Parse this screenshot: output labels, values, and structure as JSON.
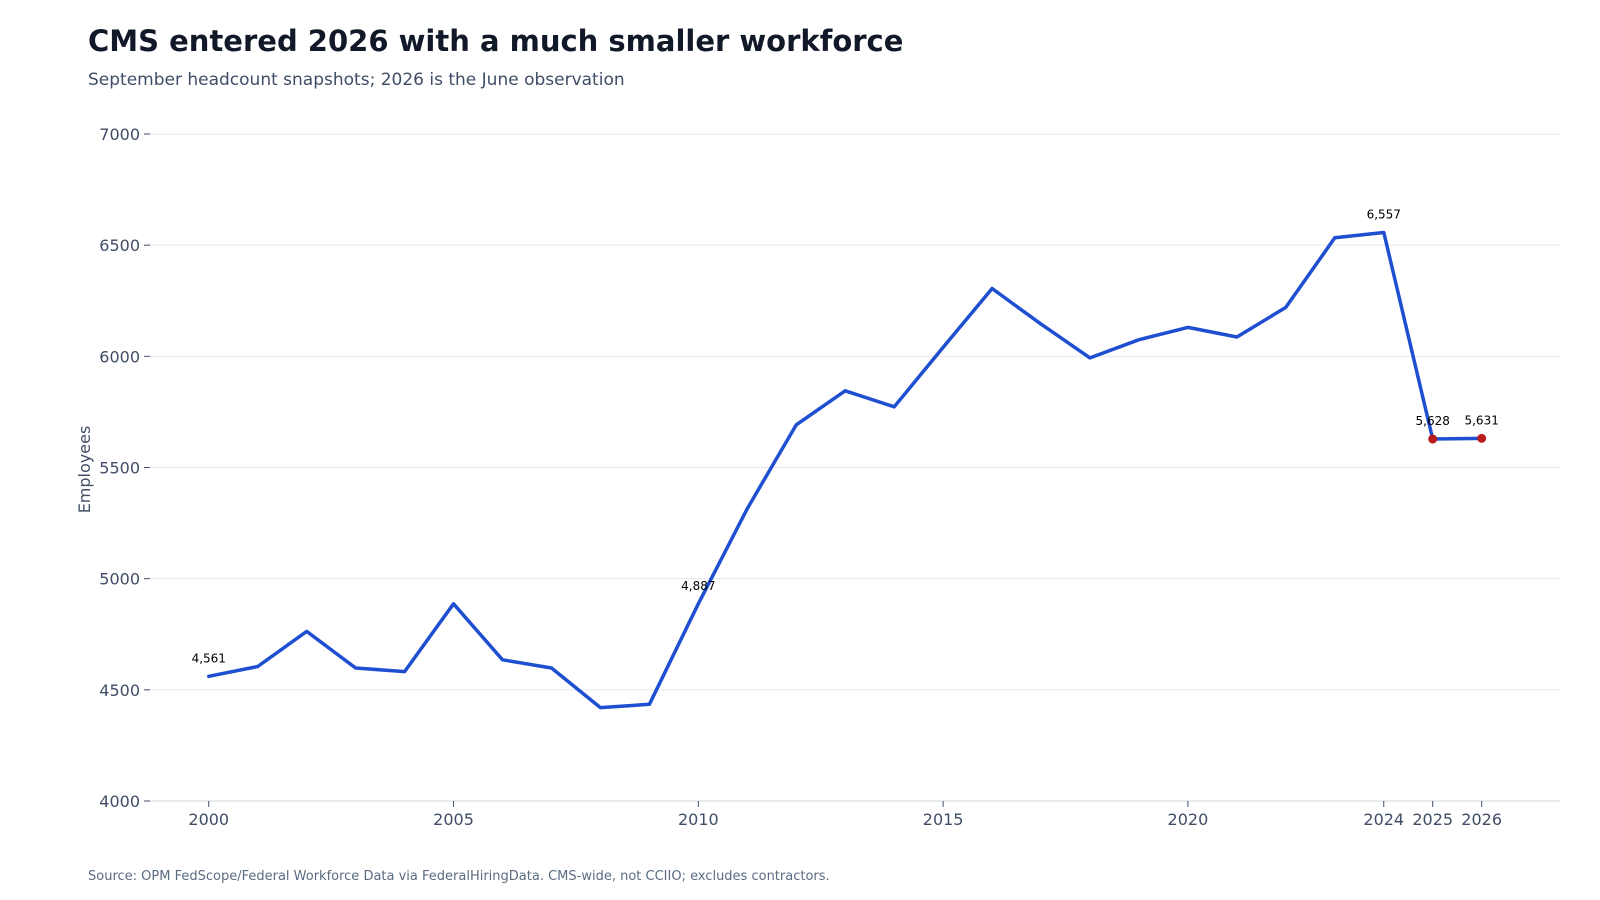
{
  "header": {
    "title": "CMS entered 2026 with a much smaller workforce",
    "subtitle": "September headcount snapshots; 2026 is the June observation"
  },
  "footer": {
    "source": "Source: OPM FedScope/Federal Workforce Data via FederalHiringData. CMS-wide, not CCIIO; excludes contractors."
  },
  "colors": {
    "line": "#1f4fd1",
    "highlight_point": "#b91c1c",
    "grid": "#e5e7eb",
    "axis_text": "#3f4d66"
  },
  "chart_data": {
    "type": "line",
    "title": "CMS entered 2026 with a much smaller workforce",
    "subtitle": "September headcount snapshots; 2026 is the June observation",
    "xlabel": "",
    "ylabel": "Employees",
    "ylim": [
      4000,
      7000
    ],
    "xlim": [
      1998.8,
      2027.6
    ],
    "yticks": [
      4000,
      4500,
      5000,
      5500,
      6000,
      6500,
      7000
    ],
    "xticks": [
      2000,
      2005,
      2010,
      2015,
      2020,
      2024,
      2025,
      2026
    ],
    "grid": "horizontal",
    "series": [
      {
        "x": [
          2000,
          2001,
          2002,
          2003,
          2004,
          2005,
          2006,
          2007,
          2008,
          2009,
          2010,
          2011,
          2012,
          2013,
          2014,
          2015,
          2016,
          2017,
          2018,
          2019,
          2020,
          2021,
          2022,
          2023,
          2024,
          2025,
          2026
        ],
        "values": [
          4561,
          4605,
          4763,
          4598,
          4582,
          4887,
          4635,
          4598,
          4420,
          4435,
          4887,
          5315,
          5692,
          5845,
          5773,
          6040,
          6305,
          6145,
          5993,
          6075,
          6130,
          6087,
          6220,
          6533,
          6557,
          5628,
          5631
        ]
      }
    ],
    "highlight_points": [
      {
        "x": 2025,
        "y": 5628
      },
      {
        "x": 2026,
        "y": 5631
      }
    ],
    "annotations": [
      {
        "x": 2000,
        "y": 4561,
        "text": "4,561"
      },
      {
        "x": 2010,
        "y": 4887,
        "text": "4,887"
      },
      {
        "x": 2024,
        "y": 6557,
        "text": "6,557"
      },
      {
        "x": 2025,
        "y": 5628,
        "text": "5,628"
      },
      {
        "x": 2026,
        "y": 5631,
        "text": "5,631"
      }
    ]
  }
}
